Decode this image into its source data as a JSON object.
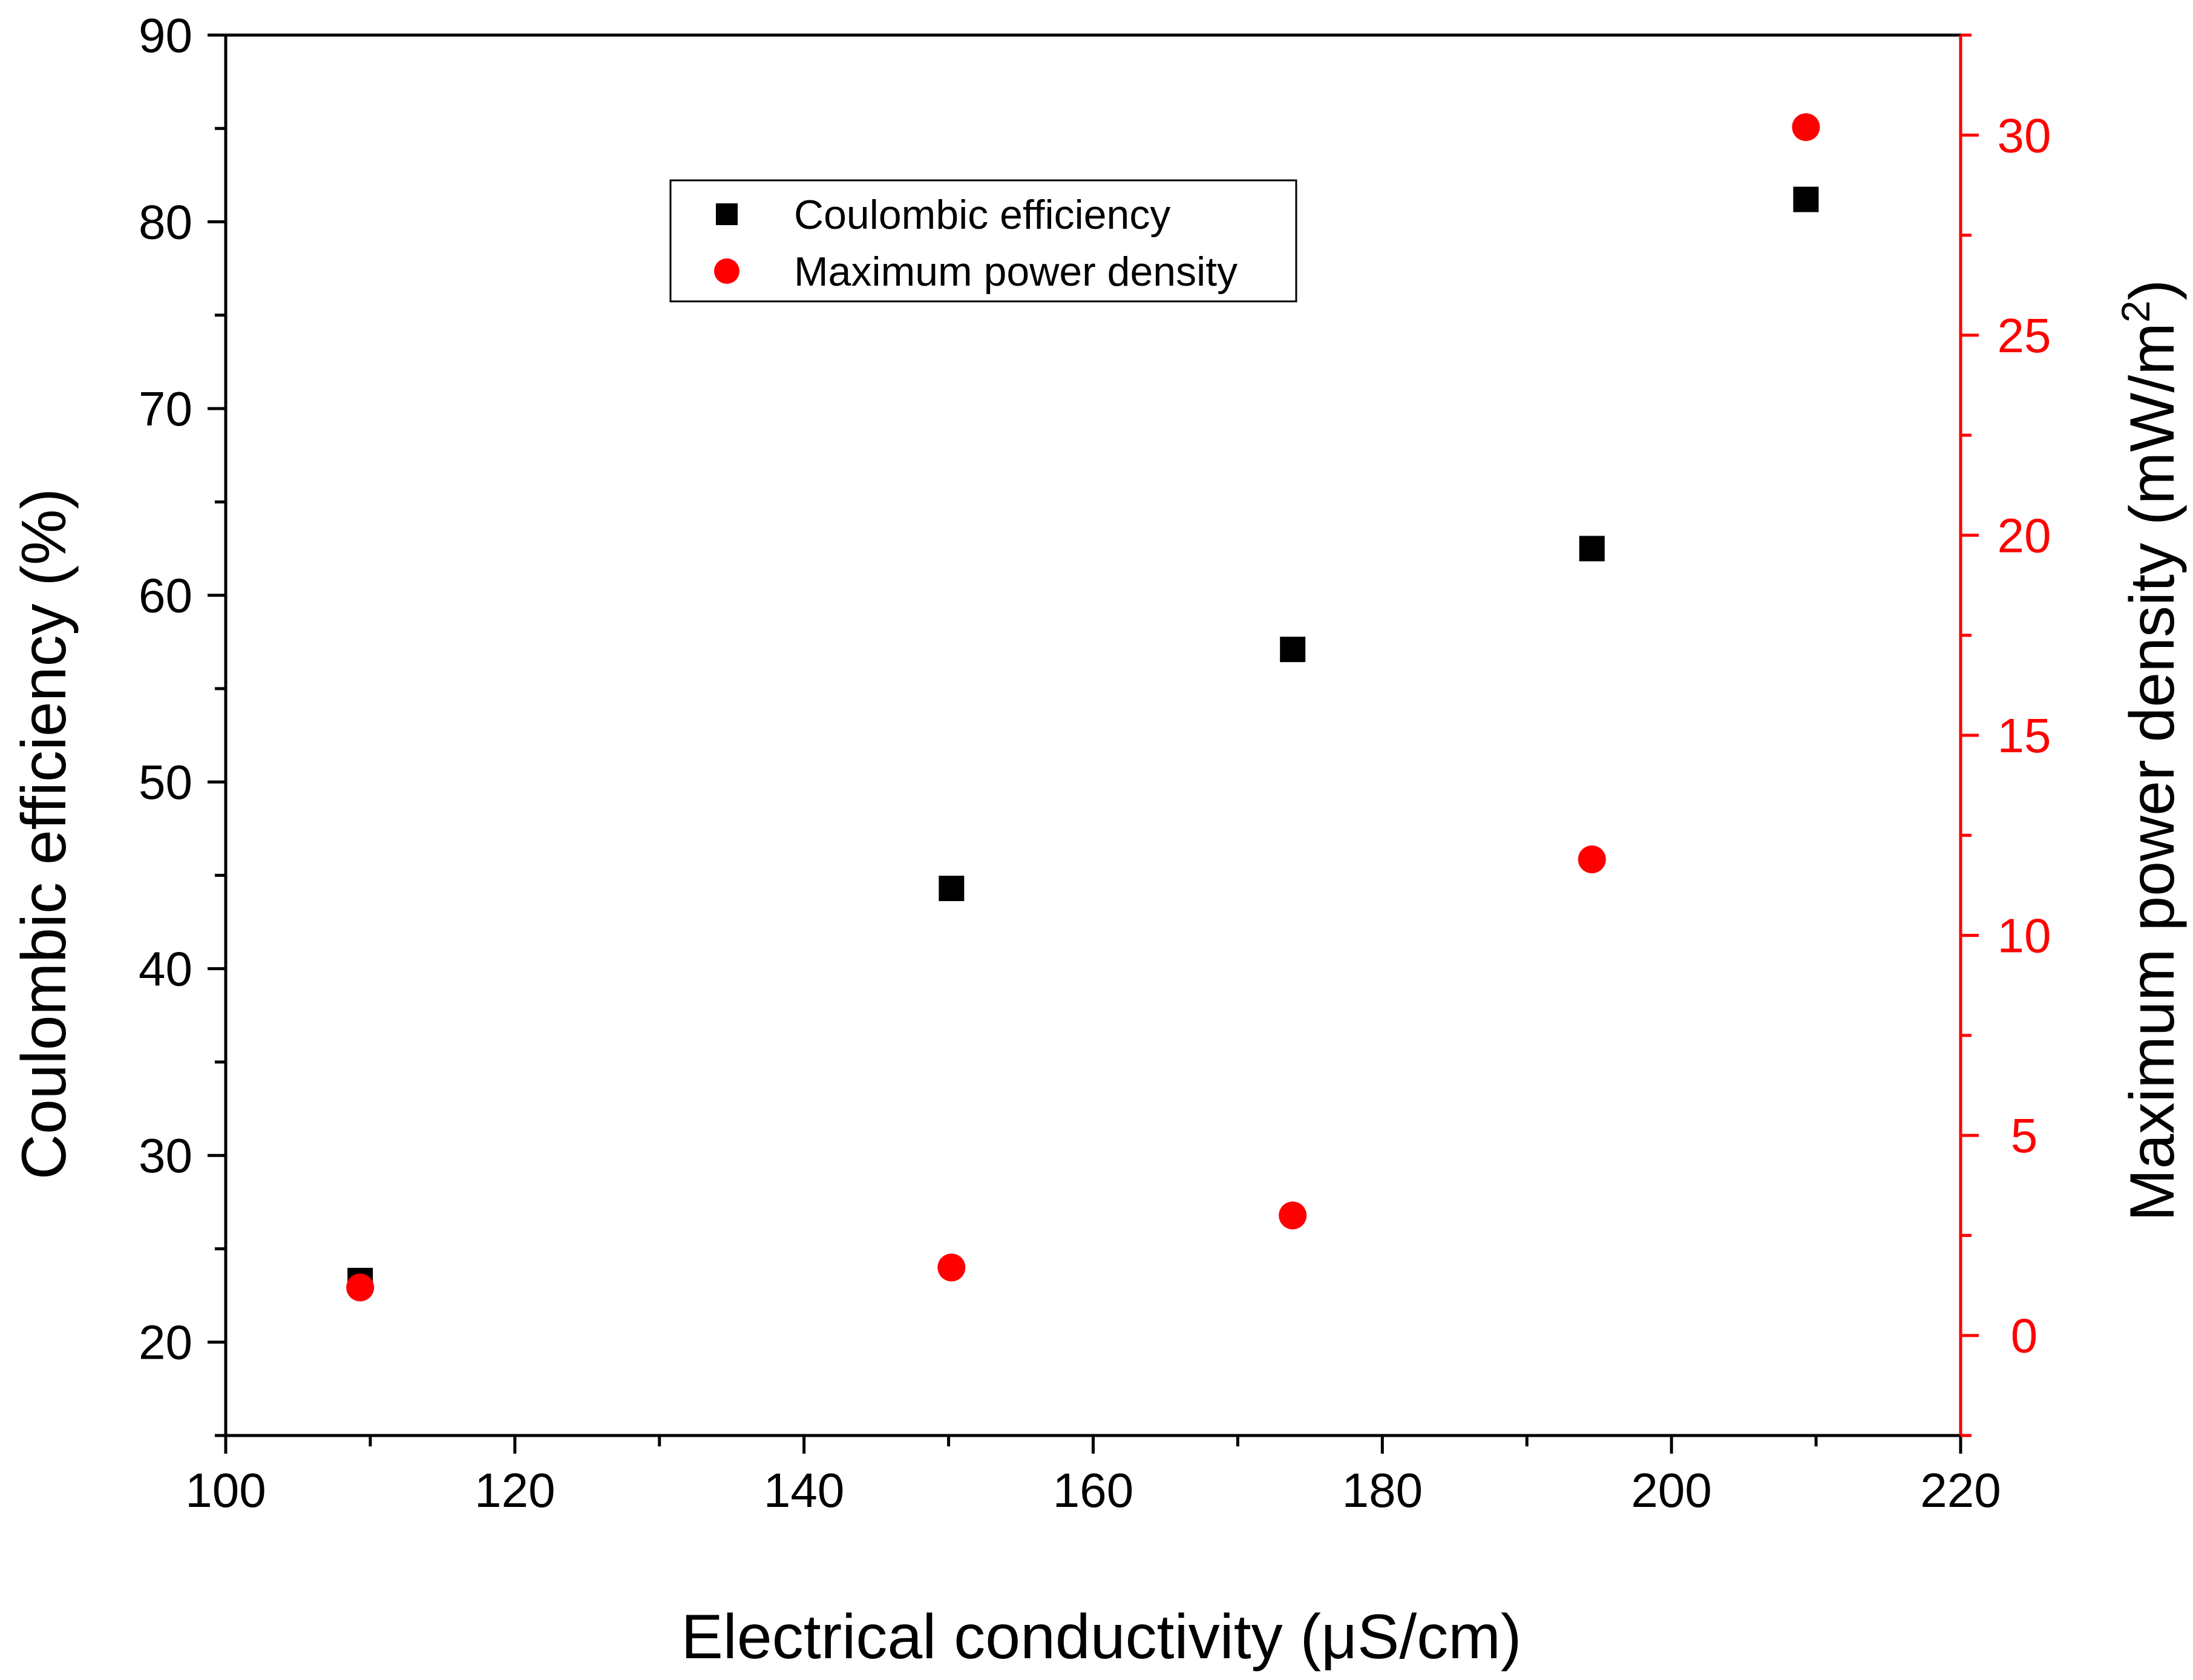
{
  "chart_data": {
    "type": "scatter",
    "xlabel": "Electrical conductivity (μS/cm)",
    "ylabel_left": "Coulombic efficiency (%)",
    "ylabel_right_main": "Maximum power density (mW/m",
    "ylabel_right_sup": "2",
    "ylabel_right_end": ")",
    "xlim": [
      100,
      220
    ],
    "ylim_left": [
      15,
      90
    ],
    "ylim_right": [
      -2.5,
      32.5
    ],
    "x_ticks": [
      100,
      120,
      140,
      160,
      180,
      200,
      220
    ],
    "x_tick_labels": [
      "100",
      "120",
      "140",
      "160",
      "180",
      "200",
      "220"
    ],
    "y_left_ticks": [
      20,
      30,
      40,
      50,
      60,
      70,
      80,
      90
    ],
    "y_left_tick_labels": [
      "20",
      "30",
      "40",
      "50",
      "60",
      "70",
      "80",
      "90"
    ],
    "y_right_ticks": [
      0,
      5,
      10,
      15,
      20,
      25,
      30
    ],
    "y_right_tick_labels": [
      "0",
      "5",
      "10",
      "15",
      "20",
      "25",
      "30"
    ],
    "series": [
      {
        "name": "Coulombic efficiency",
        "axis": "left",
        "marker": "square",
        "color": "#000000",
        "x": [
          109.3,
          150.2,
          173.8,
          194.5,
          209.3
        ],
        "y": [
          23.3,
          44.3,
          57.1,
          62.5,
          81.2
        ]
      },
      {
        "name": "Maximum power density",
        "axis": "right",
        "marker": "circle",
        "color": "#ff0000",
        "x": [
          109.3,
          150.2,
          173.8,
          194.5,
          209.3
        ],
        "y": [
          1.2,
          1.7,
          3.0,
          11.9,
          30.2
        ]
      }
    ],
    "legend_position": "top-left"
  },
  "colors": {
    "left_axis": "#000000",
    "right_axis": "#ff0000"
  }
}
